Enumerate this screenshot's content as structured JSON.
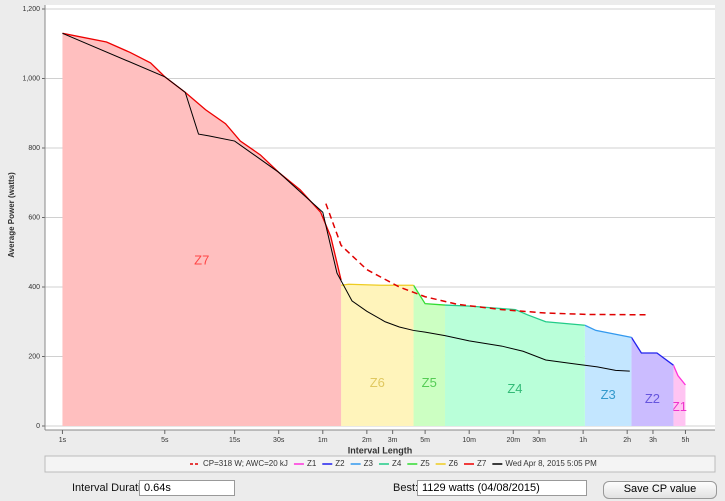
{
  "chart_data": {
    "type": "area",
    "x_label": "Interval Length",
    "y_label": "Average Power (watts)",
    "log_x": true,
    "grid": true,
    "xlim": [
      0.76,
      28650
    ],
    "ylim": [
      0,
      1200
    ],
    "xticks": [
      {
        "value": 1,
        "label": "1s"
      },
      {
        "value": 5,
        "label": "5s"
      },
      {
        "value": 15,
        "label": "15s"
      },
      {
        "value": 30,
        "label": "30s"
      },
      {
        "value": 60,
        "label": "1m"
      },
      {
        "value": 120,
        "label": "2m"
      },
      {
        "value": 180,
        "label": "3m"
      },
      {
        "value": 300,
        "label": "5m"
      },
      {
        "value": 600,
        "label": "10m"
      },
      {
        "value": 1200,
        "label": "20m"
      },
      {
        "value": 1800,
        "label": "30m"
      },
      {
        "value": 3600,
        "label": "1h"
      },
      {
        "value": 7200,
        "label": "2h"
      },
      {
        "value": 10800,
        "label": "3h"
      },
      {
        "value": 18000,
        "label": "5h"
      }
    ],
    "yticks": [
      0,
      200,
      400,
      600,
      800,
      {
        "value": 1000,
        "label": "1,000"
      },
      {
        "value": 1200,
        "label": "1,200"
      }
    ],
    "cp_curve": {
      "name": "CP=318 W; AWC=20 kJ",
      "color": "#e00000",
      "x": [
        63,
        80,
        120,
        200,
        300,
        500,
        1000,
        2000,
        4000,
        10000
      ],
      "values": [
        640,
        520,
        450,
        400,
        372,
        350,
        335,
        325,
        321,
        320
      ]
    },
    "series": [
      {
        "name": "Z1",
        "color": "#ff33dd",
        "fill": "#ffc4f2",
        "label_color": "#ee33cc",
        "x": [
          14900,
          16000,
          18000
        ],
        "values": [
          175,
          145,
          118
        ]
      },
      {
        "name": "Z2",
        "color": "#2222ee",
        "fill": "#cbbcff",
        "label_color": "#6655dd",
        "x": [
          7700,
          9000,
          11500,
          14900
        ],
        "values": [
          255,
          210,
          210,
          175
        ]
      },
      {
        "name": "Z3",
        "color": "#3399ee",
        "fill": "#c3e6ff",
        "label_color": "#3399cc",
        "x": [
          3700,
          4400,
          7700
        ],
        "values": [
          290,
          275,
          255
        ]
      },
      {
        "name": "Z4",
        "color": "#22cc88",
        "fill": "#b9ffd9",
        "label_color": "#33bb77",
        "x": [
          410,
          610,
          1240,
          1500,
          2000,
          3700
        ],
        "values": [
          348,
          345,
          335,
          320,
          300,
          290
        ]
      },
      {
        "name": "Z5",
        "color": "#33dd33",
        "fill": "#ccffc2",
        "label_color": "#55cc55",
        "x": [
          250,
          300,
          410
        ],
        "values": [
          405,
          352,
          348
        ]
      },
      {
        "name": "Z6",
        "color": "#eecc22",
        "fill": "#fff4bb",
        "label_color": "#e0c860",
        "x": [
          80,
          90,
          150,
          250
        ],
        "values": [
          405,
          408,
          405,
          405
        ]
      },
      {
        "name": "Z7",
        "color": "#ee0000",
        "fill": "#ffbfbf",
        "label_color": "#ff4444",
        "x": [
          1,
          2,
          2.9,
          4,
          5,
          6.9,
          9.5,
          13,
          16.4,
          22.5,
          30,
          42,
          58,
          68,
          80
        ],
        "values": [
          1130,
          1105,
          1075,
          1045,
          1005,
          960,
          910,
          870,
          820,
          780,
          730,
          680,
          615,
          545,
          420
        ]
      }
    ],
    "ride": {
      "name": "Wed Apr 8, 2015 5:05 PM",
      "color": "#000000",
      "x": [
        1,
        5,
        6.9,
        8.5,
        10,
        15,
        30,
        60,
        75,
        95,
        120,
        160,
        200,
        250,
        300,
        410,
        600,
        1000,
        1400,
        2000,
        3000,
        4500,
        6000,
        7500
      ],
      "values": [
        1130,
        1005,
        960,
        840,
        835,
        820,
        730,
        615,
        440,
        360,
        330,
        300,
        285,
        275,
        270,
        260,
        245,
        230,
        215,
        190,
        180,
        170,
        160,
        158
      ]
    }
  },
  "controls": {
    "interval_duration_label": "Interval Duration:",
    "interval_duration": "0.64s",
    "best_label": "Best:",
    "best": "1129 watts (04/08/2015)",
    "save_button": "Save CP value"
  }
}
